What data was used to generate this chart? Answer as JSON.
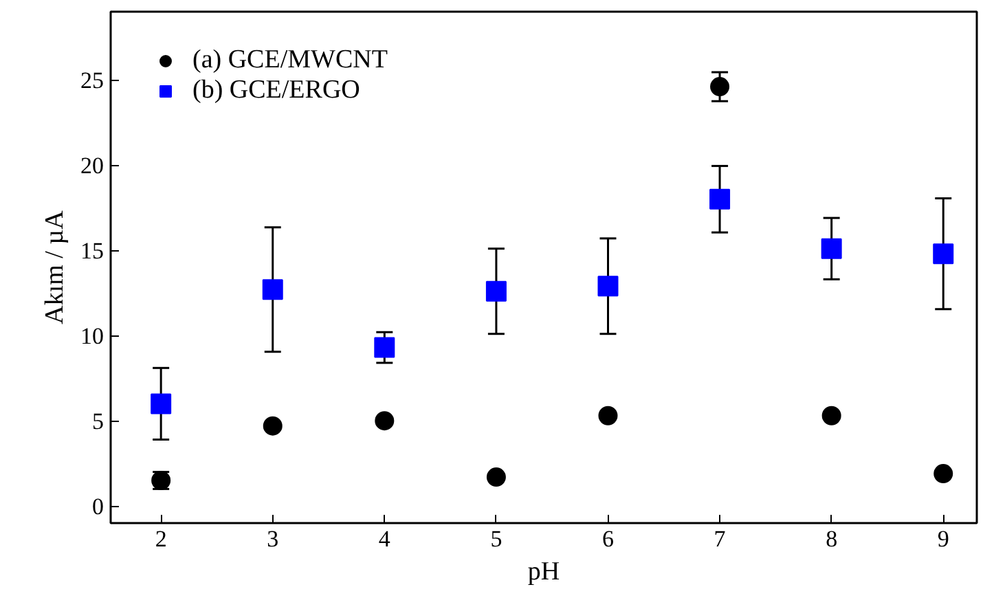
{
  "chart_data": {
    "type": "scatter",
    "xlabel": "pH",
    "ylabel": "Akım / µA",
    "x": [
      2,
      3,
      4,
      5,
      6,
      7,
      8,
      9
    ],
    "series": [
      {
        "name": "(a) GCE/MWCNT",
        "color": "#000000",
        "marker": "circle",
        "values": [
          1.5,
          4.7,
          5.0,
          1.7,
          5.3,
          24.6,
          5.3,
          1.9
        ],
        "errors": [
          0.5,
          null,
          null,
          null,
          null,
          0.85,
          null,
          null
        ]
      },
      {
        "name": "(b) GCE/ERGO",
        "color": "#0000ff",
        "marker": "square",
        "values": [
          6.0,
          12.7,
          9.3,
          12.6,
          12.9,
          18.0,
          15.1,
          14.8
        ],
        "errors": [
          2.1,
          3.65,
          0.9,
          2.5,
          2.8,
          1.95,
          1.8,
          3.25
        ]
      }
    ],
    "xlim": [
      1.55,
      9.3
    ],
    "ylim": [
      -1,
      29
    ],
    "xticks": [
      2,
      3,
      4,
      5,
      6,
      7,
      8,
      9
    ],
    "yticks": [
      0,
      5,
      10,
      15,
      20,
      25
    ],
    "grid": false,
    "legend": "top left"
  }
}
